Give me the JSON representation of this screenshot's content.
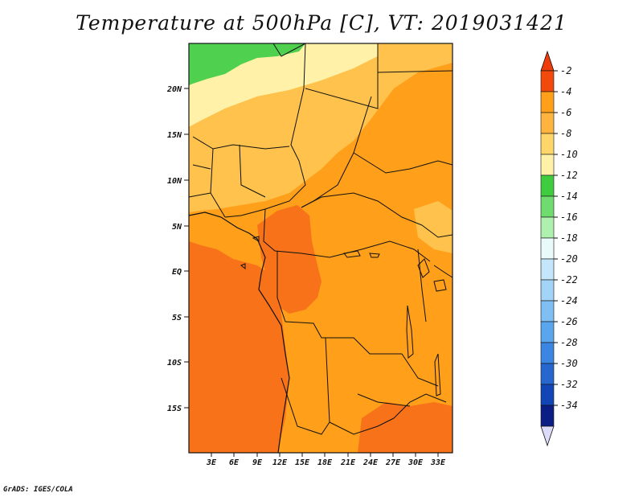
{
  "title": "Temperature at 500hPa [C], VT: 2019031421",
  "credit": "GrADS: IGES/COLA",
  "map": {
    "lat_labels": [
      "20N",
      "15N",
      "10N",
      "5N",
      "EQ",
      "5S",
      "10S",
      "15S"
    ],
    "lon_labels": [
      "3E",
      "6E",
      "9E",
      "12E",
      "15E",
      "18E",
      "21E",
      "24E",
      "27E",
      "30E",
      "33E"
    ],
    "regions": {
      "cool_north": "#4fd14f",
      "pale_north": "#fff2a8",
      "light_orange": "#ffc24d",
      "orange": "#ff9f1a",
      "dark_orange": "#f77219"
    }
  },
  "colorbar": {
    "labels": [
      "-2",
      "-4",
      "-6",
      "-8",
      "-10",
      "-12",
      "-14",
      "-16",
      "-18",
      "-20",
      "-22",
      "-24",
      "-26",
      "-28",
      "-30",
      "-32",
      "-34"
    ],
    "colors": [
      "#f24a0d",
      "#ff9f1a",
      "#ffb43f",
      "#ffd66a",
      "#fff2a8",
      "#3fcc3f",
      "#6fdc6f",
      "#aef0ae",
      "#e8fbfa",
      "#c3e6fb",
      "#a2d4f8",
      "#7fbff4",
      "#5aa6ee",
      "#3b86e2",
      "#2566cf",
      "#1246b6",
      "#0a1e86"
    ],
    "top_arrow_color": "#ee3c0a",
    "bottom_arrow_color": "#dcdcf8"
  }
}
